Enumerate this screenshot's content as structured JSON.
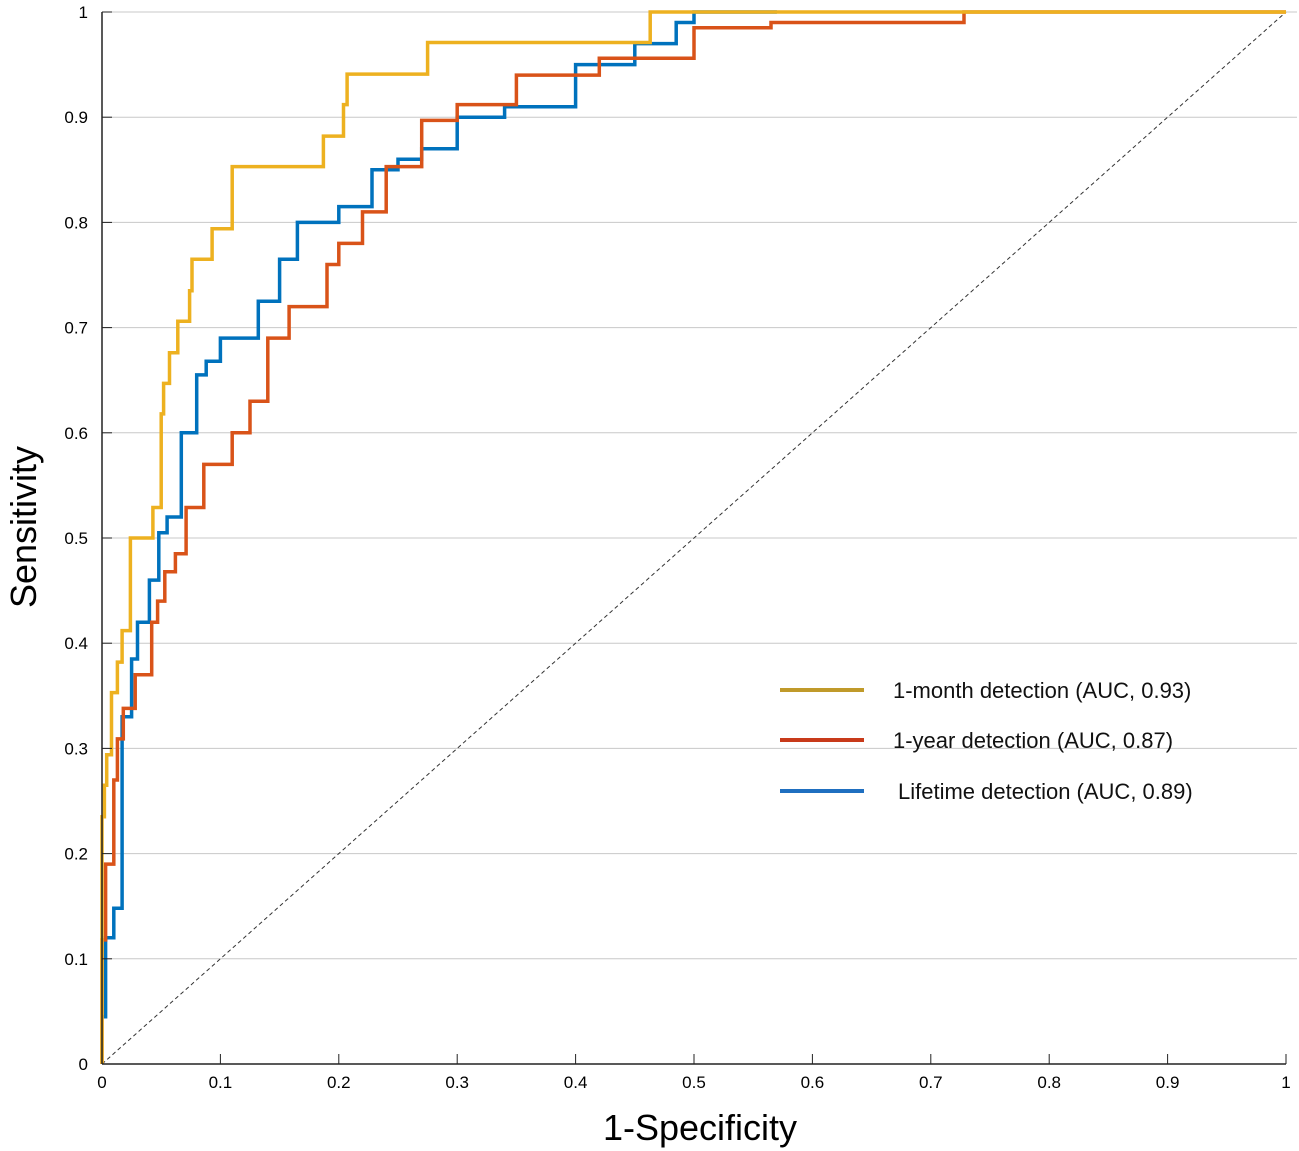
{
  "chart_data": {
    "type": "line",
    "title": "",
    "xlabel": "1-Specificity",
    "ylabel": "Sensitivity",
    "xlim": [
      0,
      1
    ],
    "ylim": [
      0,
      1
    ],
    "grid": "horizontal",
    "legend_position": "lower-right",
    "xticks": [
      "0",
      "0.1",
      "0.2",
      "0.3",
      "0.4",
      "0.5",
      "0.6",
      "0.7",
      "0.8",
      "0.9",
      "1"
    ],
    "yticks": [
      "0",
      "0.1",
      "0.2",
      "0.3",
      "0.4",
      "0.5",
      "0.6",
      "0.7",
      "0.8",
      "0.9",
      "1"
    ],
    "reference_line": {
      "name": "chance",
      "x": [
        0,
        1
      ],
      "y": [
        0,
        1
      ],
      "style": "dashed",
      "color": "#333333"
    },
    "series": [
      {
        "name": "1-month detection (AUC, 0.93)",
        "color": "#EDB120",
        "legend_color": "#C09A2A",
        "x": [
          0,
          0,
          0.002,
          0.002,
          0.004,
          0.004,
          0.008,
          0.008,
          0.013,
          0.013,
          0.017,
          0.017,
          0.024,
          0.024,
          0.043,
          0.043,
          0.05,
          0.05,
          0.052,
          0.052,
          0.057,
          0.057,
          0.064,
          0.064,
          0.074,
          0.074,
          0.076,
          0.076,
          0.093,
          0.093,
          0.11,
          0.11,
          0.187,
          0.187,
          0.204,
          0.204,
          0.207,
          0.207,
          0.275,
          0.275,
          0.463,
          0.463,
          1
        ],
        "y": [
          0,
          0.235,
          0.235,
          0.265,
          0.265,
          0.294,
          0.294,
          0.353,
          0.353,
          0.382,
          0.382,
          0.412,
          0.412,
          0.5,
          0.5,
          0.529,
          0.529,
          0.618,
          0.618,
          0.647,
          0.647,
          0.676,
          0.676,
          0.706,
          0.706,
          0.735,
          0.735,
          0.765,
          0.765,
          0.794,
          0.794,
          0.853,
          0.853,
          0.882,
          0.882,
          0.912,
          0.912,
          0.941,
          0.941,
          0.971,
          0.971,
          1,
          1
        ]
      },
      {
        "name": "1-year detection (AUC, 0.87)",
        "color": "#D95319",
        "legend_color": "#C83A1A",
        "x": [
          0,
          0,
          0.003,
          0.003,
          0.01,
          0.01,
          0.013,
          0.013,
          0.018,
          0.018,
          0.028,
          0.028,
          0.042,
          0.042,
          0.047,
          0.047,
          0.053,
          0.053,
          0.062,
          0.062,
          0.071,
          0.071,
          0.086,
          0.086,
          0.11,
          0.11,
          0.125,
          0.125,
          0.14,
          0.14,
          0.158,
          0.158,
          0.19,
          0.19,
          0.2,
          0.2,
          0.22,
          0.22,
          0.24,
          0.24,
          0.27,
          0.27,
          0.3,
          0.3,
          0.35,
          0.35,
          0.42,
          0.42,
          0.5,
          0.5,
          0.565,
          0.565,
          0.728,
          0.728,
          1
        ],
        "y": [
          0,
          0.118,
          0.118,
          0.19,
          0.19,
          0.27,
          0.27,
          0.309,
          0.309,
          0.338,
          0.338,
          0.37,
          0.37,
          0.42,
          0.42,
          0.44,
          0.44,
          0.468,
          0.468,
          0.485,
          0.485,
          0.529,
          0.529,
          0.57,
          0.57,
          0.6,
          0.6,
          0.63,
          0.63,
          0.69,
          0.69,
          0.72,
          0.72,
          0.76,
          0.76,
          0.78,
          0.78,
          0.81,
          0.81,
          0.853,
          0.853,
          0.897,
          0.897,
          0.912,
          0.912,
          0.94,
          0.94,
          0.956,
          0.956,
          0.985,
          0.985,
          0.99,
          0.99,
          1,
          1
        ]
      },
      {
        "name": "Lifetime detection (AUC, 0.89)",
        "color": "#0072BD",
        "legend_color": "#1F6FC0",
        "x": [
          0,
          0.003,
          0.003,
          0.01,
          0.01,
          0.017,
          0.017,
          0.025,
          0.025,
          0.03,
          0.03,
          0.04,
          0.04,
          0.048,
          0.048,
          0.055,
          0.055,
          0.067,
          0.067,
          0.08,
          0.08,
          0.088,
          0.088,
          0.1,
          0.1,
          0.132,
          0.132,
          0.15,
          0.15,
          0.165,
          0.165,
          0.2,
          0.2,
          0.228,
          0.228,
          0.25,
          0.25,
          0.27,
          0.27,
          0.3,
          0.3,
          0.34,
          0.34,
          0.4,
          0.4,
          0.45,
          0.45,
          0.485,
          0.485,
          0.5,
          0.5,
          0.57
        ],
        "y": [
          0.045,
          0.045,
          0.12,
          0.12,
          0.148,
          0.148,
          0.33,
          0.33,
          0.385,
          0.385,
          0.42,
          0.42,
          0.46,
          0.46,
          0.505,
          0.505,
          0.52,
          0.52,
          0.6,
          0.6,
          0.655,
          0.655,
          0.668,
          0.668,
          0.69,
          0.69,
          0.725,
          0.725,
          0.765,
          0.765,
          0.8,
          0.8,
          0.815,
          0.815,
          0.85,
          0.85,
          0.86,
          0.86,
          0.87,
          0.87,
          0.9,
          0.9,
          0.91,
          0.91,
          0.95,
          0.95,
          0.97,
          0.97,
          0.99,
          0.99,
          1,
          1
        ]
      }
    ]
  }
}
